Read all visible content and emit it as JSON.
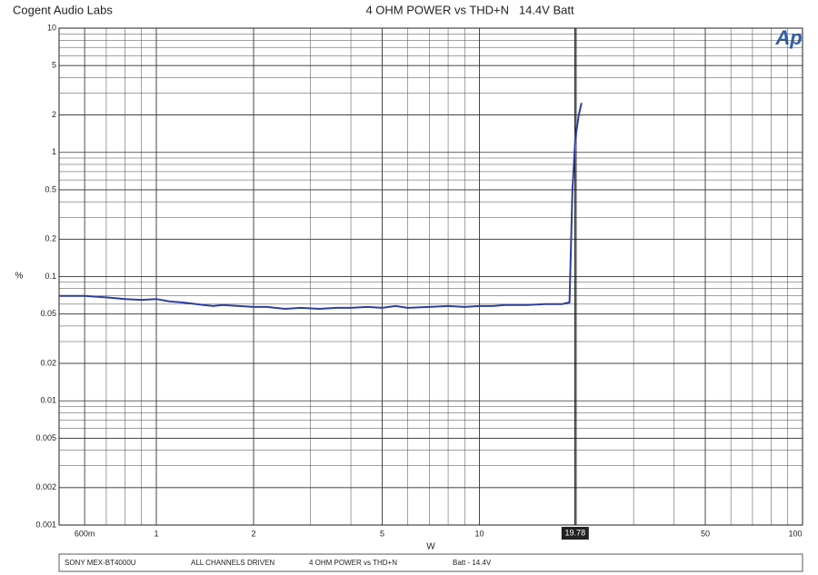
{
  "header": "Cogent Audio Labs",
  "logo": "Ap",
  "chart_data": {
    "type": "line",
    "title": "4 OHM POWER vs THD+N   14.4V Batt",
    "x_label": "W",
    "y_label": "%",
    "xscale": "log",
    "yscale": "log",
    "grid": true,
    "minor_grid": true,
    "xlim": [
      0.5,
      100
    ],
    "ylim": [
      0.001,
      10
    ],
    "xticks": [
      {
        "value": 0.6,
        "label": "600m"
      },
      1,
      2,
      5,
      10,
      50,
      100
    ],
    "yticks": [
      10,
      5,
      2,
      1,
      0.5,
      0.2,
      0.1,
      0.05,
      0.02,
      0.01,
      0.005,
      0.002,
      0.001
    ],
    "cursor": 19.78,
    "series": [
      {
        "name": "THD+N",
        "color": "#2e3f9e",
        "x": [
          0.5,
          0.6,
          0.7,
          0.8,
          0.9,
          1.0,
          1.1,
          1.2,
          1.4,
          1.5,
          1.6,
          1.8,
          2.0,
          2.2,
          2.5,
          2.8,
          3.2,
          3.6,
          4,
          4.5,
          5,
          5.5,
          6,
          7,
          8,
          9,
          10,
          11,
          12,
          14,
          16,
          18,
          19,
          19.4,
          19.8,
          20.3,
          20.7
        ],
        "values": [
          0.07,
          0.07,
          0.068,
          0.066,
          0.065,
          0.066,
          0.063,
          0.062,
          0.059,
          0.058,
          0.059,
          0.058,
          0.057,
          0.057,
          0.055,
          0.056,
          0.055,
          0.056,
          0.056,
          0.057,
          0.056,
          0.058,
          0.056,
          0.057,
          0.058,
          0.057,
          0.058,
          0.058,
          0.059,
          0.059,
          0.06,
          0.06,
          0.062,
          0.49,
          1.3,
          2.0,
          2.5
        ]
      }
    ]
  },
  "footer": [
    "SONY MEX-BT4000U",
    "ALL CHANNELS DRIVEN",
    "4 OHM  POWER vs THD+N",
    "Batt - 14.4V"
  ]
}
